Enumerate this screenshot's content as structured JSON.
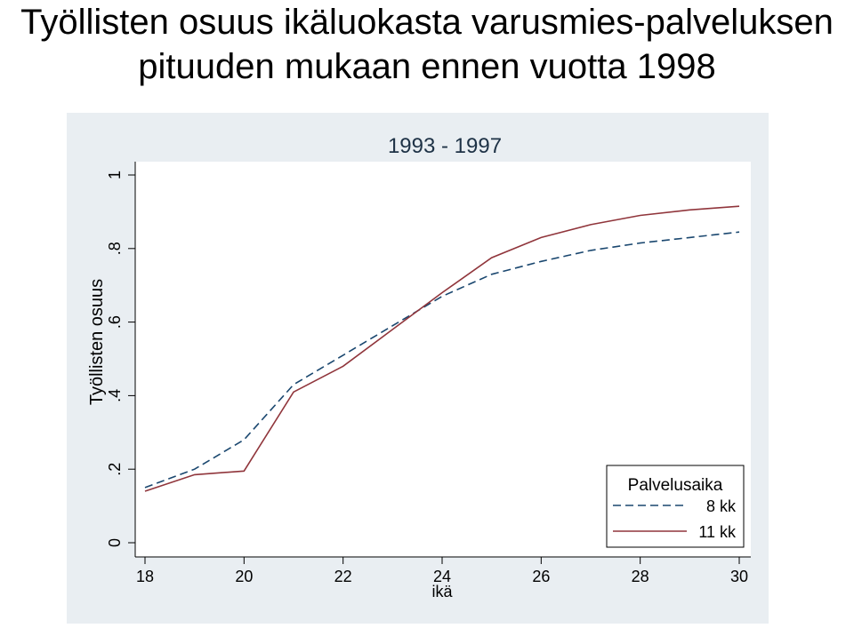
{
  "slide": {
    "title": "Työllisten osuus ikäluokasta varusmies-palveluksen pituuden mukaan ennen vuotta 1998"
  },
  "colors": {
    "panel_bg": "#e9eef2",
    "plot_bg": "#ffffff",
    "series_8kk": "#1a476f",
    "series_11kk": "#90353b"
  },
  "chart_data": {
    "type": "line",
    "title": "1993 - 1997",
    "xlabel": "ikä",
    "ylabel": "Työllisten osuus",
    "xlim": [
      18,
      30
    ],
    "ylim": [
      0,
      1
    ],
    "xticks": [
      "18",
      "20",
      "22",
      "24",
      "26",
      "28",
      "30"
    ],
    "yticks": [
      "0",
      ".2",
      ".4",
      ".6",
      ".8",
      "1"
    ],
    "grid": false,
    "legend": {
      "title": "Palvelusaika",
      "position": "bottom-right"
    },
    "x": [
      18,
      19,
      20,
      21,
      22,
      23,
      24,
      25,
      26,
      27,
      28,
      29,
      30
    ],
    "series": [
      {
        "name": "8 kk",
        "style": "dashed",
        "values": [
          0.15,
          0.2,
          0.28,
          0.43,
          0.51,
          0.59,
          0.67,
          0.73,
          0.765,
          0.795,
          0.815,
          0.83,
          0.845
        ]
      },
      {
        "name": "11 kk",
        "style": "solid",
        "values": [
          0.14,
          0.185,
          0.195,
          0.41,
          0.48,
          0.58,
          0.68,
          0.775,
          0.83,
          0.865,
          0.89,
          0.905,
          0.915
        ]
      }
    ]
  }
}
